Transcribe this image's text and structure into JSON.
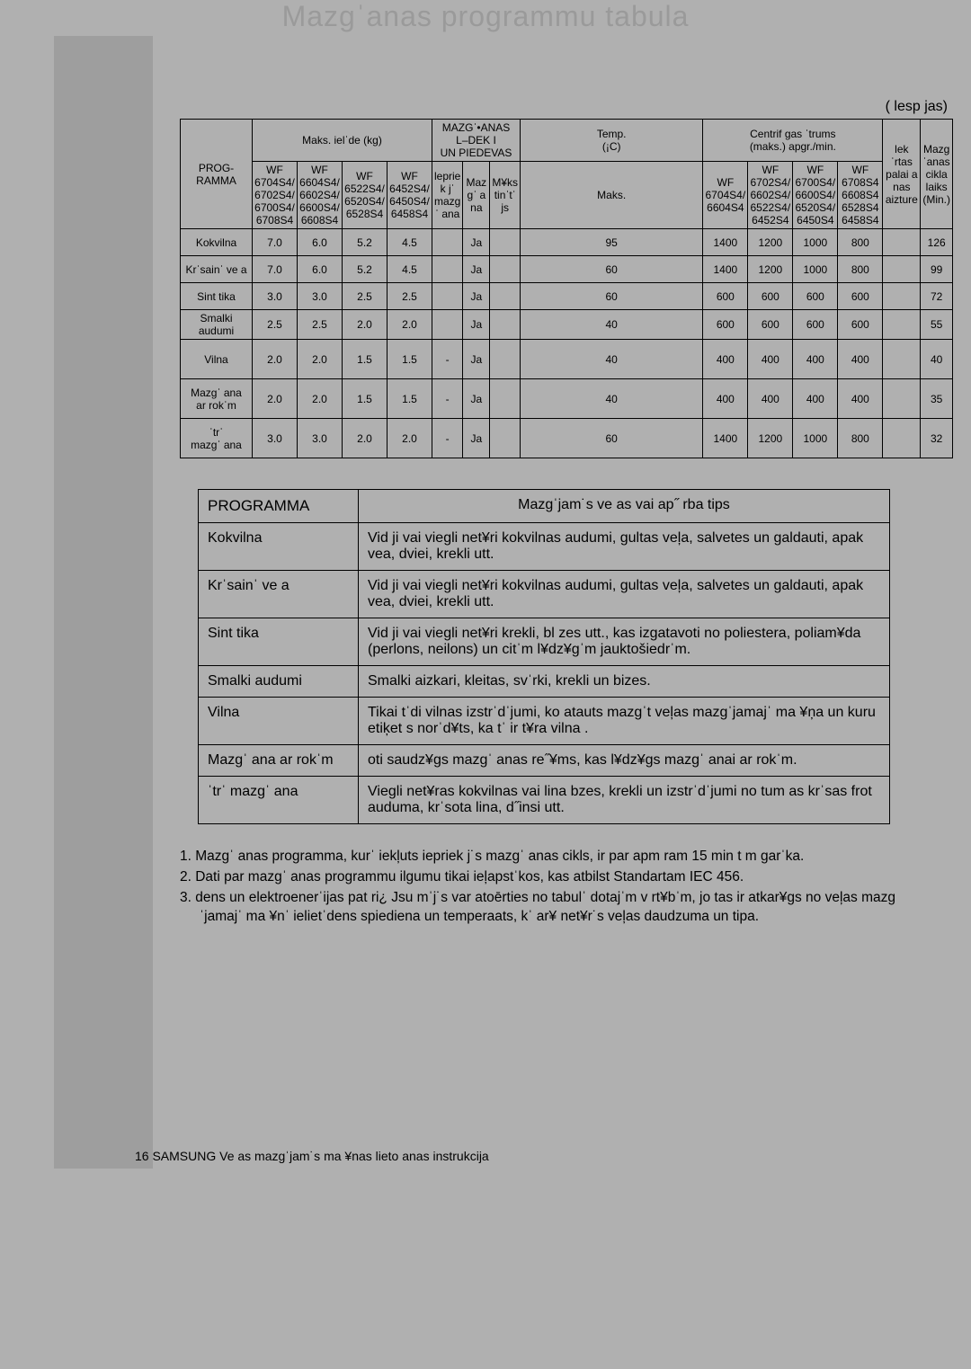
{
  "title": "Mazgˈanas programmu tabula",
  "unit_note": "(  lesp jas)",
  "table1": {
    "header": {
      "prog": "PROG-\nRAMMA",
      "maks": "Maks. ielˈde (kg)",
      "mazganas": "MAZGˈ•ANAS\nL–DEK I\nUN PIEDEVAS",
      "temp": "Temp.\n(¡C)",
      "centrif": "Centrif gas ˈtrums\n(maks.) apgr./min.",
      "lekrtas": "lekˈrtas\npalai a\nnas\naizture",
      "mazg": "Mazg\nˈanas\ncikla\nlaiks\n(Min.)",
      "col_wf1": "WF\n6704S4/\n6702S4/\n6700S4/\n6708S4",
      "col_wf2": "WF\n6604S4/\n6602S4/\n6600S4/\n6608S4",
      "col_wf3": "WF\n6522S4/\n6520S4/\n6528S4",
      "col_wf4": "WF\n6452S4/\n6450S4/\n6458S4",
      "col_leprie": "leprie\nk jˈ\nmazg\nˈ ana",
      "col_maz": "Maz\ngˈ a\nna",
      "col_miks": "M¥ks\ntinˈtˈ\njs",
      "col_maks": "Maks.",
      "col_cwf1": "WF\n6704S4/\n6604S4",
      "col_cwf2": "WF\n6702S4/\n6602S4/\n6522S4/\n6452S4",
      "col_cwf3": "WF\n6700S4/\n6600S4/\n6520S4/\n6450S4",
      "col_cwf4": "WF\n6708S4\n6608S4\n6528S4\n6458S4"
    },
    "rows": [
      {
        "name": "Kokvilna",
        "v": [
          "7.0",
          "6.0",
          "5.2",
          "4.5",
          "",
          "Ja",
          "",
          "95",
          "1400",
          "1200",
          "1000",
          "800",
          "",
          "126"
        ]
      },
      {
        "name": "Krˈsainˈ ve a",
        "v": [
          "7.0",
          "6.0",
          "5.2",
          "4.5",
          "",
          "Ja",
          "",
          "60",
          "1400",
          "1200",
          "1000",
          "800",
          "",
          "99"
        ]
      },
      {
        "name": "Sint tika",
        "v": [
          "3.0",
          "3.0",
          "2.5",
          "2.5",
          "",
          "Ja",
          "",
          "60",
          "600",
          "600",
          "600",
          "600",
          "",
          "72"
        ]
      },
      {
        "name": "Smalki\naudumi",
        "v": [
          "2.5",
          "2.5",
          "2.0",
          "2.0",
          "",
          "Ja",
          "",
          "40",
          "600",
          "600",
          "600",
          "600",
          "",
          "55"
        ]
      },
      {
        "name": "Vilna",
        "v": [
          "2.0",
          "2.0",
          "1.5",
          "1.5",
          "-",
          "Ja",
          "",
          "40",
          "400",
          "400",
          "400",
          "400",
          "",
          "40"
        ]
      },
      {
        "name": "Mazgˈ ana\nar rokˈm",
        "v": [
          "2.0",
          "2.0",
          "1.5",
          "1.5",
          "-",
          "Ja",
          "",
          "40",
          "400",
          "400",
          "400",
          "400",
          "",
          "35"
        ]
      },
      {
        "name": "ˈtrˈ\nmazgˈ ana",
        "v": [
          "3.0",
          "3.0",
          "2.0",
          "2.0",
          "-",
          "Ja",
          "",
          "60",
          "1400",
          "1200",
          "1000",
          "800",
          "",
          "32"
        ]
      }
    ]
  },
  "table2": {
    "h_prog": "PROGRAMMA",
    "h_desc": "Mazgˈjam˙s ve as vai ap˝ rba tips",
    "rows": [
      {
        "p": "Kokvilna",
        "d": "Vid ji vai viegli net¥ri kokvilnas audumi, gultas veļa, salvetes un galdauti, apak vea, dviei, krekli utt."
      },
      {
        "p": "Krˈsainˈ ve a",
        "d": "Vid ji vai viegli net¥ri kokvilnas audumi, gultas veļa, salvetes un galdauti, apak vea, dviei, krekli utt."
      },
      {
        "p": "Sint tika",
        "d": "Vid ji vai viegli net¥ri krekli, bl zes utt., kas izgatavoti no poliestera, poliam¥da (perlons, neilons) un citˈm l¥dz¥gˈm jauktošiedrˈm."
      },
      {
        "p": "Smalki audumi",
        "d": "Smalki aizkari, kleitas, svˈrki, krekli un bizes."
      },
      {
        "p": "Vilna",
        "d": "Tikai tˈdi vilnas izstrˈdˈjumi, ko atauts mazgˈt veļas mazgˈjamajˈ ma ¥ņa un kuru etiķet s norˈd¥ts, ka tˈ ir t¥ra vilna ."
      },
      {
        "p": "Mazgˈ ana ar rokˈm",
        "d": "  oti saudz¥gs mazgˈ anas re˝¥ms, kas l¥dz¥gs mazgˈ anai ar rokˈm."
      },
      {
        "p": "ˈtrˈ mazgˈ ana",
        "d": "Viegli net¥ras kokvilnas vai lina bzes, krekli un izstrˈdˈjumi no tum as krˈsas frot  auduma, krˈsota lina, d˝insi utt."
      }
    ]
  },
  "notes": [
    "1. Mazgˈ anas programma, kurˈ iekļuts iepriek  j˙s mazgˈ anas cikls, ir par apm ram 15 min  t m garˈka.",
    "2. Dati par mazgˈ anas programmu ilgumu tikai ieļapstˈkos, kas atbilst Standartam IEC 456.",
    "3.  dens un elektroenerˈijas pat ri¿  Jsu mˈj˙s var atoērties no tabulˈ dotajˈm v rt¥bˈm, jo tas ir atkar¥gs no  veļas mazgˈjamajˈ ma ¥nˈ ielietˈdens spiediena un temperaats, kˈ ar¥ net¥r˙s veļas daudzuma un tipa."
  ],
  "footer_page": "16",
  "footer_text": "  SAMSUNG  Ve as mazgˈjam˙s ma ¥nas lieto anas instrukcija"
}
